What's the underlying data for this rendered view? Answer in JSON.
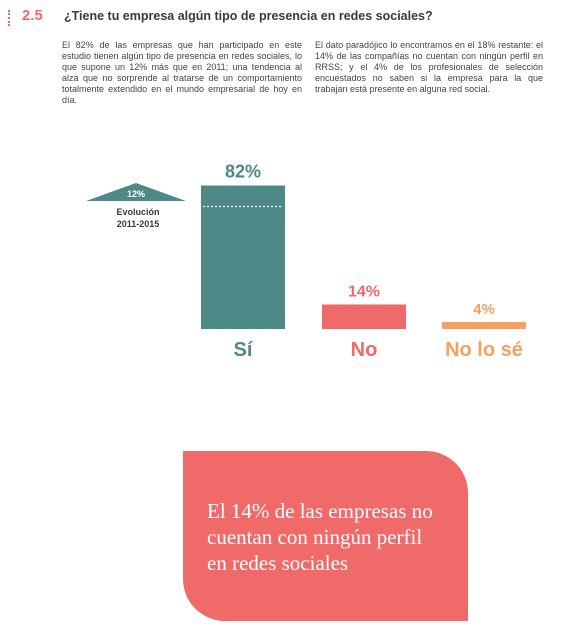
{
  "section": {
    "number": "2.5",
    "title": "¿Tiene tu empresa algún tipo de presencia en redes sociales?"
  },
  "paragraphs": {
    "left": "El 82% de las empresas que han participado en este estudio tienen algún tipo de presencia en redes sociales, lo que supone un 12% más que en 2011; una tendencia al alza que no sorprende al tratarse de un comportamiento totalmente extendido en el mundo empresarial de hoy en día.",
    "right": "El dato paradójico lo encontramos en el 18% restante: el 14% de las compañías no cuentan con ningún perfil en RRSS; y el 4% de los profesionales de selección encuestados no saben si la empresa para la que trabajan está presente en alguna red social."
  },
  "chart_data": {
    "type": "bar",
    "categories": [
      "Sí",
      "No",
      "No lo sé"
    ],
    "values": [
      82,
      14,
      4
    ],
    "value_labels": [
      "82%",
      "14%",
      "4%"
    ],
    "colors": [
      "#4d8a87",
      "#f06a6a",
      "#f4a261"
    ],
    "ylim": [
      0,
      100
    ],
    "annotation": {
      "value_label": "12%",
      "label_line1": "Evolución",
      "label_line2": "2011-2015",
      "baseline_value": 70,
      "color": "#4d8a87"
    }
  },
  "callout": {
    "text": "El 14% de las empresas no cuentan con ningún perfil en redes sociales",
    "color": "#f06a6a"
  }
}
